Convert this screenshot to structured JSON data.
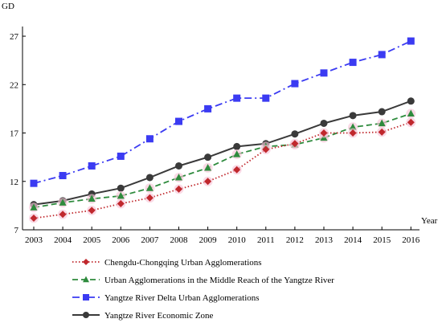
{
  "chart_data": {
    "type": "line",
    "ylabel": "GD",
    "xlabel": "Year",
    "x": [
      "2003",
      "2004",
      "2005",
      "2006",
      "2007",
      "2008",
      "2009",
      "2010",
      "2011",
      "2012",
      "2013",
      "2014",
      "2015",
      "2016"
    ],
    "ylim": [
      7,
      28
    ],
    "yticks": [
      "7",
      "12",
      "17",
      "22",
      "27"
    ],
    "grid": false,
    "legend_position": "bottom",
    "series": [
      {
        "name": "Chengdu-Chongqing Urban Agglomerations",
        "color": "#c0282d",
        "line_style": "dotted",
        "marker": "diamond",
        "values": [
          8.2,
          8.6,
          9.0,
          9.7,
          10.3,
          11.2,
          12.0,
          13.2,
          15.3,
          15.9,
          17.0,
          17.0,
          17.1,
          18.1
        ]
      },
      {
        "name": "Urban Agglomerations in the Middle Reach of the Yangtze River",
        "color": "#2e8b3d",
        "line_style": "dashed",
        "marker": "triangle",
        "values": [
          9.3,
          9.8,
          10.2,
          10.5,
          11.3,
          12.4,
          13.4,
          14.8,
          15.6,
          15.8,
          16.5,
          17.6,
          18.0,
          19.0
        ]
      },
      {
        "name": "Yangtze River Delta Urban Agglomerations",
        "color": "#3b3bf2",
        "line_style": "dash-dot",
        "marker": "square",
        "values": [
          11.8,
          12.6,
          13.6,
          14.6,
          16.4,
          18.2,
          19.5,
          20.6,
          20.6,
          22.1,
          23.2,
          24.3,
          25.1,
          26.5
        ]
      },
      {
        "name": "Yangtze River Economic Zone",
        "color": "#3a3a3a",
        "line_style": "solid",
        "marker": "circle",
        "values": [
          9.6,
          10.0,
          10.7,
          11.3,
          12.4,
          13.6,
          14.5,
          15.6,
          15.9,
          16.9,
          18.0,
          18.8,
          19.2,
          20.3
        ]
      }
    ]
  }
}
